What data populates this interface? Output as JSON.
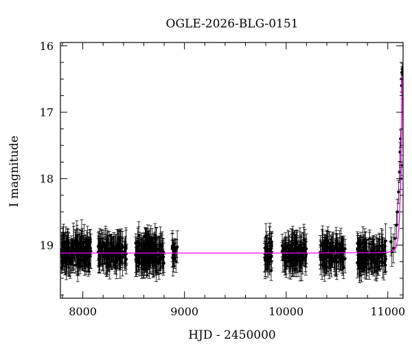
{
  "chart_data": {
    "type": "scatter",
    "title": "OGLE-2026-BLG-0151",
    "xlabel": "HJD - 2450000",
    "ylabel": "I magnitude",
    "xlim": [
      7780,
      11150
    ],
    "ylim": [
      19.8,
      15.95
    ],
    "y_inverted": true,
    "x_ticks": [
      8000,
      9000,
      10000,
      11000
    ],
    "y_ticks": [
      16,
      17,
      18,
      19
    ],
    "x_minor_step": 200,
    "y_minor_step": 0.25,
    "grid": false,
    "colors": {
      "points": "#000000",
      "model": "#ff00ff",
      "frame": "#000000"
    },
    "observing_seasons": [
      {
        "x_start": 7790,
        "x_end": 8080,
        "mag_mean": 19.1,
        "scatter": 0.22,
        "n": 160
      },
      {
        "x_start": 8150,
        "x_end": 8430,
        "mag_mean": 19.12,
        "scatter": 0.2,
        "n": 130
      },
      {
        "x_start": 8520,
        "x_end": 8800,
        "mag_mean": 19.12,
        "scatter": 0.25,
        "n": 160
      },
      {
        "x_start": 8880,
        "x_end": 8930,
        "mag_mean": 19.1,
        "scatter": 0.15,
        "n": 18
      },
      {
        "x_start": 9790,
        "x_end": 9860,
        "mag_mean": 19.12,
        "scatter": 0.28,
        "n": 40
      },
      {
        "x_start": 9960,
        "x_end": 10200,
        "mag_mean": 19.12,
        "scatter": 0.22,
        "n": 110
      },
      {
        "x_start": 10330,
        "x_end": 10580,
        "mag_mean": 19.12,
        "scatter": 0.22,
        "n": 110
      },
      {
        "x_start": 10700,
        "x_end": 10980,
        "mag_mean": 19.15,
        "scatter": 0.25,
        "n": 130
      }
    ],
    "event_points": [
      [
        11030,
        18.95
      ],
      [
        11040,
        19.1
      ],
      [
        11055,
        19.05
      ],
      [
        11070,
        18.9
      ],
      [
        11085,
        18.7
      ],
      [
        11095,
        18.5
      ],
      [
        11105,
        18.2
      ],
      [
        11115,
        17.9
      ],
      [
        11120,
        17.6
      ],
      [
        11125,
        17.4
      ],
      [
        11128,
        18.0
      ],
      [
        11132,
        17.8
      ],
      [
        11135,
        16.6
      ],
      [
        11138,
        16.4
      ],
      [
        11140,
        16.5
      ],
      [
        11142,
        16.35
      ],
      [
        11144,
        16.7
      ],
      [
        11146,
        16.45
      ],
      [
        11147,
        16.4
      ]
    ],
    "model_curve": [
      [
        7780,
        19.12
      ],
      [
        9000,
        19.12
      ],
      [
        10000,
        19.12
      ],
      [
        10900,
        19.115
      ],
      [
        11000,
        19.11
      ],
      [
        11050,
        19.09
      ],
      [
        11080,
        19.04
      ],
      [
        11100,
        18.9
      ],
      [
        11115,
        18.6
      ],
      [
        11125,
        18.1
      ],
      [
        11132,
        17.5
      ],
      [
        11136,
        17.0
      ],
      [
        11139,
        16.6
      ],
      [
        11141,
        16.45
      ],
      [
        11143,
        16.55
      ],
      [
        11146,
        16.9
      ],
      [
        11150,
        17.6
      ]
    ]
  }
}
